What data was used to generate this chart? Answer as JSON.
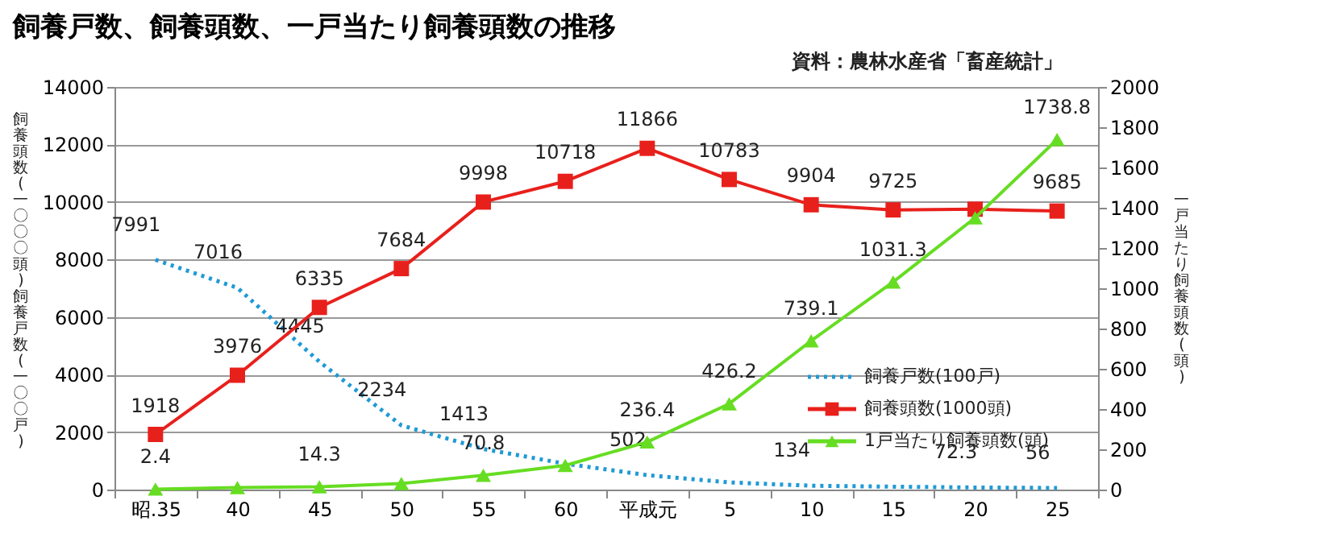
{
  "chart_data": {
    "type": "line",
    "title": "飼養戸数、飼養頭数、一戸当たり飼養頭数の推移",
    "annotations": [
      "資料：農林水産省「畜産統計」"
    ],
    "ylabel": "飼養頭数(一〇〇〇頭) 飼養戸数(一〇〇戸)",
    "y2label": "一戸当たり飼養頭数(頭)",
    "categories": [
      "昭.35",
      "40",
      "45",
      "50",
      "55",
      "60",
      "平成元",
      "5",
      "10",
      "15",
      "20",
      "25"
    ],
    "ylim": [
      0,
      14000
    ],
    "yticks": [
      0,
      2000,
      4000,
      6000,
      8000,
      10000,
      12000,
      14000
    ],
    "y2lim": [
      0,
      2000
    ],
    "y2ticks": [
      0,
      200,
      400,
      600,
      800,
      1000,
      1200,
      1400,
      1600,
      1800,
      2000
    ],
    "grid": "y",
    "legend": "right",
    "series": [
      {
        "name": "飼養戸数(100戸)",
        "color": "#1f9ad6",
        "line_style": "dotted",
        "marker": "none",
        "values": [
          7991,
          7016,
          4445,
          2234,
          1413,
          900,
          502,
          250,
          134,
          100,
          72.3,
          56
        ],
        "value_labels": [
          "7991",
          "7016",
          "4445",
          "2234",
          "1413",
          null,
          "502",
          null,
          "134",
          null,
          "72.3",
          "56"
        ]
      },
      {
        "name": "飼養頭数(1000頭)",
        "color": "#e8201c",
        "line_style": "solid",
        "marker": "square",
        "values": [
          1918,
          3976,
          6335,
          7684,
          9998,
          10718,
          11866,
          10783,
          9904,
          9725,
          9750,
          9685
        ],
        "value_labels": [
          "1918",
          "3976",
          "6335",
          "7684",
          "9998",
          "10718",
          "11866",
          "10783",
          "9904",
          "9725",
          null,
          "9685"
        ]
      },
      {
        "name": "1戸当たり飼養頭数(頭)",
        "color": "#66dd22",
        "line_style": "solid",
        "marker": "triangle",
        "axis": "y2",
        "values": [
          2.4,
          10,
          14.3,
          30,
          70.8,
          120,
          236.4,
          426.2,
          739.1,
          1031.3,
          1350,
          1738.8
        ],
        "value_labels": [
          "2.4",
          null,
          "14.3",
          null,
          "70.8",
          null,
          "236.4",
          "426.2",
          "739.1",
          "1031.3",
          null,
          "1738.8"
        ]
      }
    ]
  }
}
